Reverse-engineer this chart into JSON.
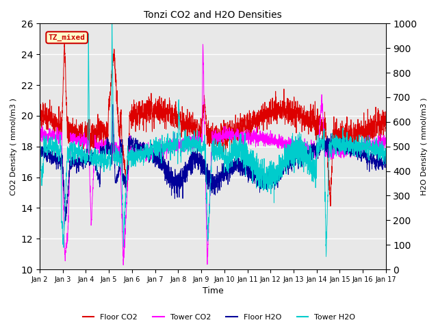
{
  "title": "Tonzi CO2 and H2O Densities",
  "xlabel": "Time",
  "ylabel_left": "CO2 Density ( mmol/m3 )",
  "ylabel_right": "H2O Density ( mmol/m3 )",
  "ylim_left": [
    10,
    26
  ],
  "ylim_right": [
    0,
    1000
  ],
  "annotation_text": "TZ_mixed",
  "annotation_bg": "#ffffcc",
  "annotation_border": "#cc0000",
  "annotation_text_color": "#cc0000",
  "plot_bg": "#e8e8e8",
  "legend_entries": [
    "Floor CO2",
    "Tower CO2",
    "Floor H2O",
    "Tower H2O"
  ],
  "colors": {
    "floor_co2": "#dd0000",
    "tower_co2": "#ff00ff",
    "floor_h2o": "#000099",
    "tower_h2o": "#00cccc"
  },
  "n_points": 3600,
  "x_start": 2,
  "x_end": 17,
  "x_ticks": [
    2,
    3,
    4,
    5,
    6,
    7,
    8,
    9,
    10,
    11,
    12,
    13,
    14,
    15,
    16,
    17
  ],
  "x_tick_labels": [
    "Jan 2",
    "Jan 3",
    "Jan 4",
    "Jan 5",
    "Jan 6",
    "Jan 7",
    "Jan 8",
    "Jan 9",
    "Jan 10",
    "Jan 11",
    "Jan 12",
    "Jan 13",
    "Jan 14",
    "Jan 15",
    "Jan 16",
    "Jan 17"
  ],
  "yticks_left": [
    10,
    12,
    14,
    16,
    18,
    20,
    22,
    24,
    26
  ],
  "yticks_right": [
    0,
    100,
    200,
    300,
    400,
    500,
    600,
    700,
    800,
    900,
    1000
  ]
}
